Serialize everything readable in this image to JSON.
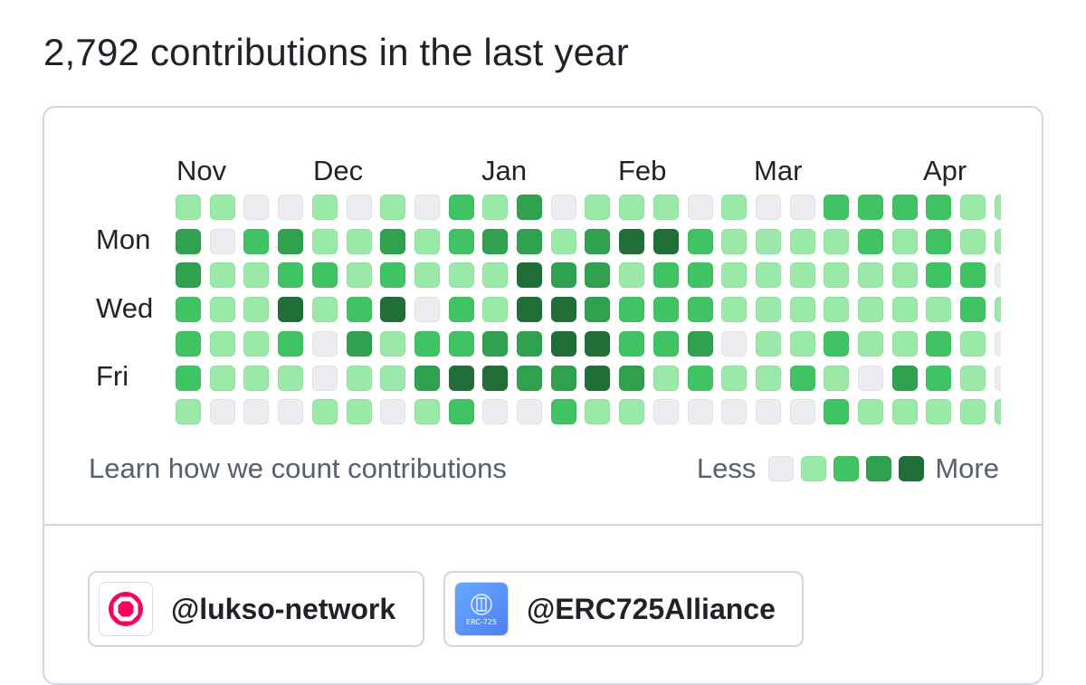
{
  "heading": "2,792 contributions in the last year",
  "months": [
    "Nov",
    "Dec",
    "Jan",
    "Feb",
    "Mar",
    "Apr"
  ],
  "day_labels": [
    "Mon",
    "Wed",
    "Fri"
  ],
  "legend": {
    "less": "Less",
    "more": "More"
  },
  "learn_link": "Learn how we count contributions",
  "colors": [
    "#ebedf0",
    "#9be9a8",
    "#40c463",
    "#30a14e",
    "#216e39"
  ],
  "grid_levels": [
    [
      1,
      1,
      0,
      0,
      1,
      0,
      1,
      0,
      2,
      1,
      3,
      0,
      1,
      1,
      1,
      0,
      1,
      0,
      0,
      2,
      2,
      2,
      2,
      1,
      1
    ],
    [
      3,
      0,
      2,
      3,
      1,
      1,
      3,
      1,
      2,
      3,
      3,
      1,
      3,
      4,
      4,
      2,
      1,
      1,
      1,
      1,
      2,
      1,
      2,
      1,
      1
    ],
    [
      3,
      1,
      1,
      2,
      2,
      1,
      2,
      1,
      1,
      1,
      4,
      3,
      3,
      1,
      2,
      2,
      1,
      1,
      1,
      1,
      1,
      1,
      2,
      2,
      0
    ],
    [
      2,
      1,
      1,
      4,
      1,
      2,
      4,
      0,
      2,
      1,
      4,
      4,
      3,
      2,
      2,
      2,
      1,
      1,
      1,
      1,
      1,
      1,
      1,
      2,
      1
    ],
    [
      2,
      1,
      1,
      2,
      0,
      3,
      1,
      2,
      2,
      3,
      3,
      4,
      4,
      2,
      2,
      3,
      0,
      1,
      1,
      2,
      1,
      1,
      2,
      1,
      0
    ],
    [
      2,
      1,
      1,
      1,
      0,
      1,
      1,
      3,
      4,
      4,
      3,
      3,
      4,
      3,
      1,
      2,
      1,
      1,
      2,
      1,
      0,
      3,
      2,
      1,
      0
    ],
    [
      1,
      0,
      0,
      0,
      1,
      1,
      0,
      1,
      2,
      0,
      0,
      2,
      1,
      1,
      0,
      0,
      0,
      0,
      0,
      2,
      1,
      1,
      1,
      1,
      1
    ]
  ],
  "orgs": [
    {
      "name": "@lukso-network",
      "avatar_icon": "lukso-logo-icon"
    },
    {
      "name": "@ERC725Alliance",
      "avatar_icon": "erc725-alliance-logo-icon",
      "avatar_text": "ERC-725"
    }
  ]
}
